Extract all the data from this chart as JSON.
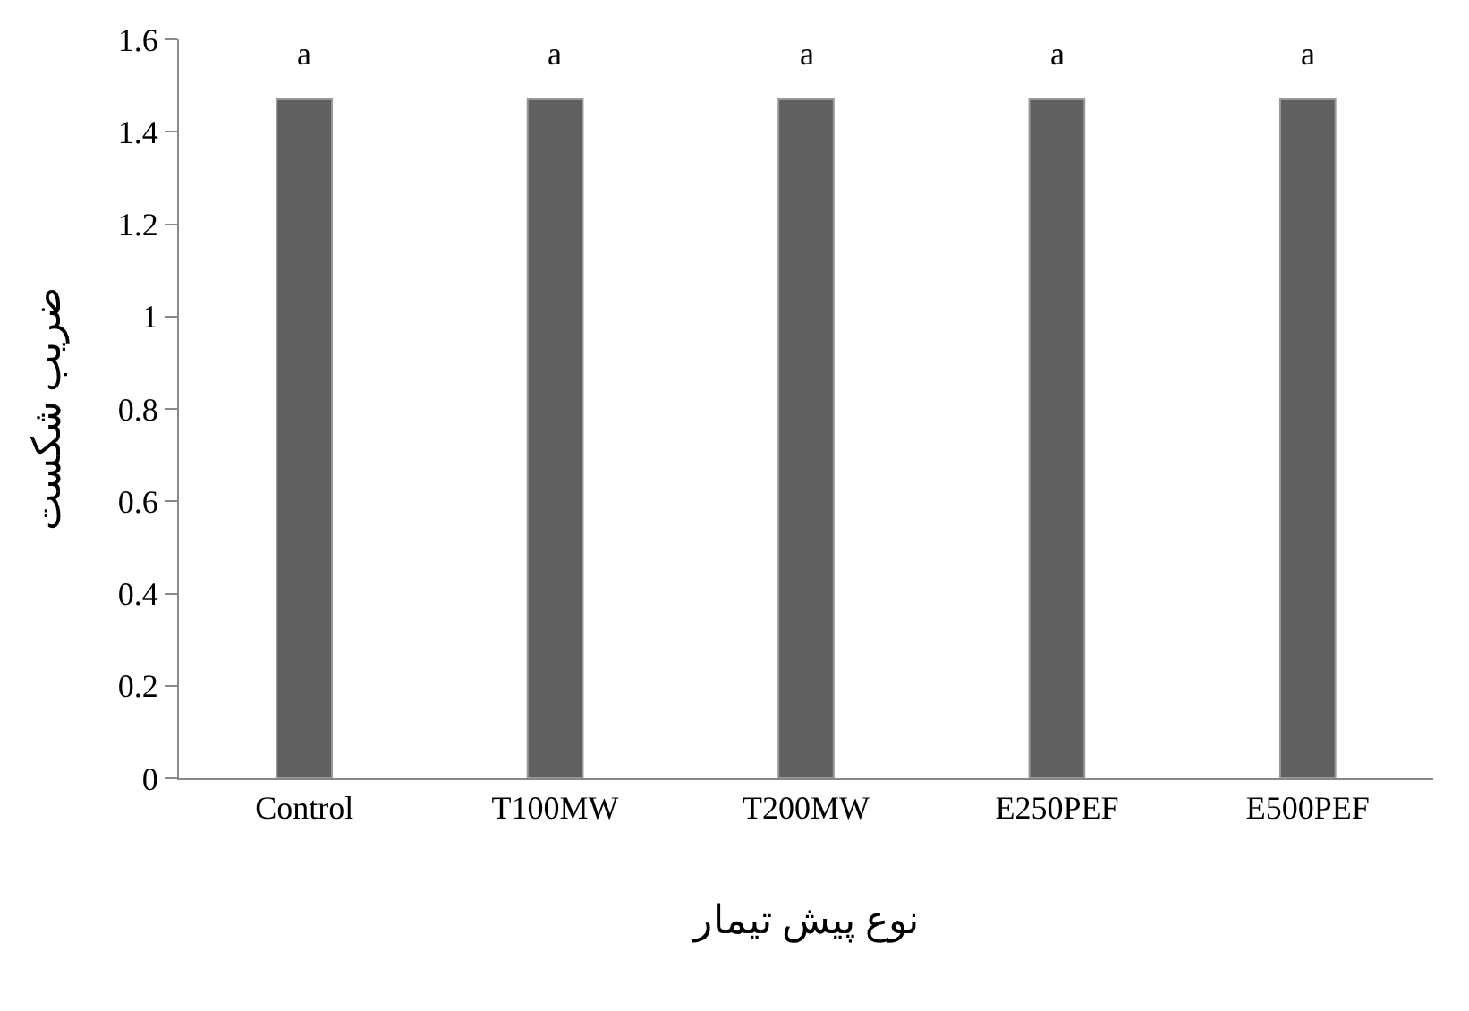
{
  "chart_data": {
    "type": "bar",
    "xlabel": "نوع پیش تیمار",
    "ylabel": "ضریب شکست",
    "categories": [
      "Control",
      "T100MW",
      "T200MW",
      "E250PEF",
      "E500PEF"
    ],
    "values": [
      1.47,
      1.47,
      1.47,
      1.47,
      1.47
    ],
    "color": "#606060",
    "ylim": [
      0,
      1.6
    ],
    "yticks": [
      0,
      0.2,
      0.4,
      0.6,
      0.8,
      1,
      1.2,
      1.4,
      1.6
    ],
    "grid": false,
    "annotations": [
      {
        "text": "a",
        "x": "Control",
        "y": 1.47
      },
      {
        "text": "a",
        "x": "T100MW",
        "y": 1.47
      },
      {
        "text": "a",
        "x": "T200MW",
        "y": 1.47
      },
      {
        "text": "a",
        "x": "E250PEF",
        "y": 1.47
      },
      {
        "text": "a",
        "x": "E500PEF",
        "y": 1.47
      }
    ]
  }
}
